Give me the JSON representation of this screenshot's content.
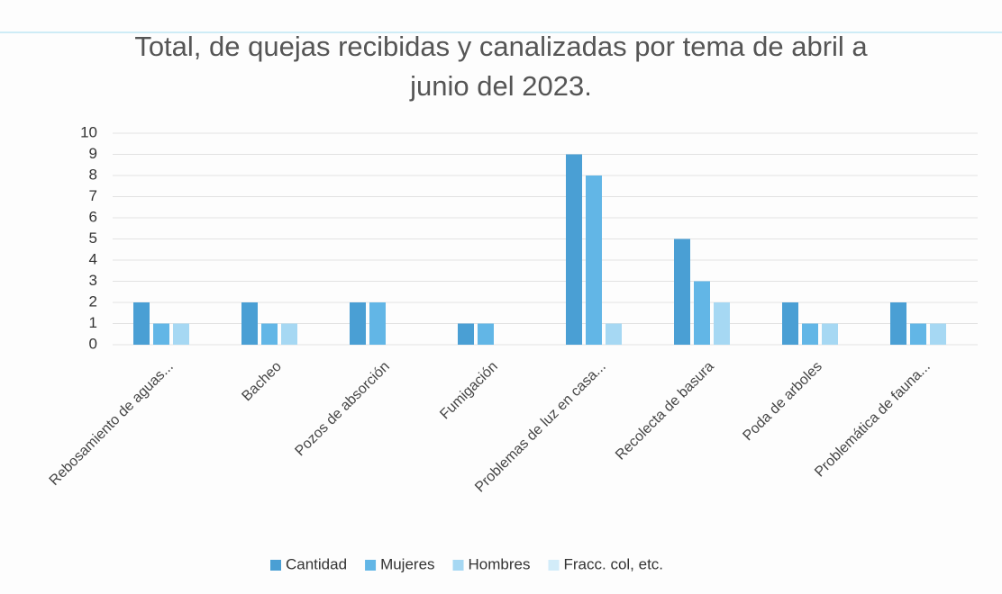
{
  "chart_data": {
    "type": "bar",
    "title": "Total, de quejas recibidas y canalizadas por tema de abril a junio del 2023.",
    "categories": [
      "Rebosamiento de aguas...",
      "Bacheo",
      "Pozos de absorción",
      "Fumigación",
      "Problemas de luz en casa...",
      "Recolecta de basura",
      "Poda de arboles",
      "Problemática de fauna..."
    ],
    "series": [
      {
        "name": "Cantidad",
        "color": "#4a9fd4",
        "values": [
          2,
          2,
          2,
          1,
          9,
          5,
          2,
          2
        ]
      },
      {
        "name": "Mujeres",
        "color": "#62b6e6",
        "values": [
          1,
          1,
          2,
          1,
          8,
          3,
          1,
          1
        ]
      },
      {
        "name": "Hombres",
        "color": "#a6d8f3",
        "values": [
          1,
          1,
          0,
          0,
          1,
          2,
          1,
          1
        ]
      },
      {
        "name": "Fracc.  col, etc.",
        "color": "#d2ecf9",
        "values": [
          0,
          0,
          0,
          0,
          0,
          0,
          0,
          0
        ]
      }
    ],
    "ylim": [
      0,
      10
    ],
    "yticks": [
      0,
      1,
      2,
      3,
      4,
      5,
      6,
      7,
      8,
      9,
      10
    ],
    "grid": true,
    "legend": "bottom"
  }
}
